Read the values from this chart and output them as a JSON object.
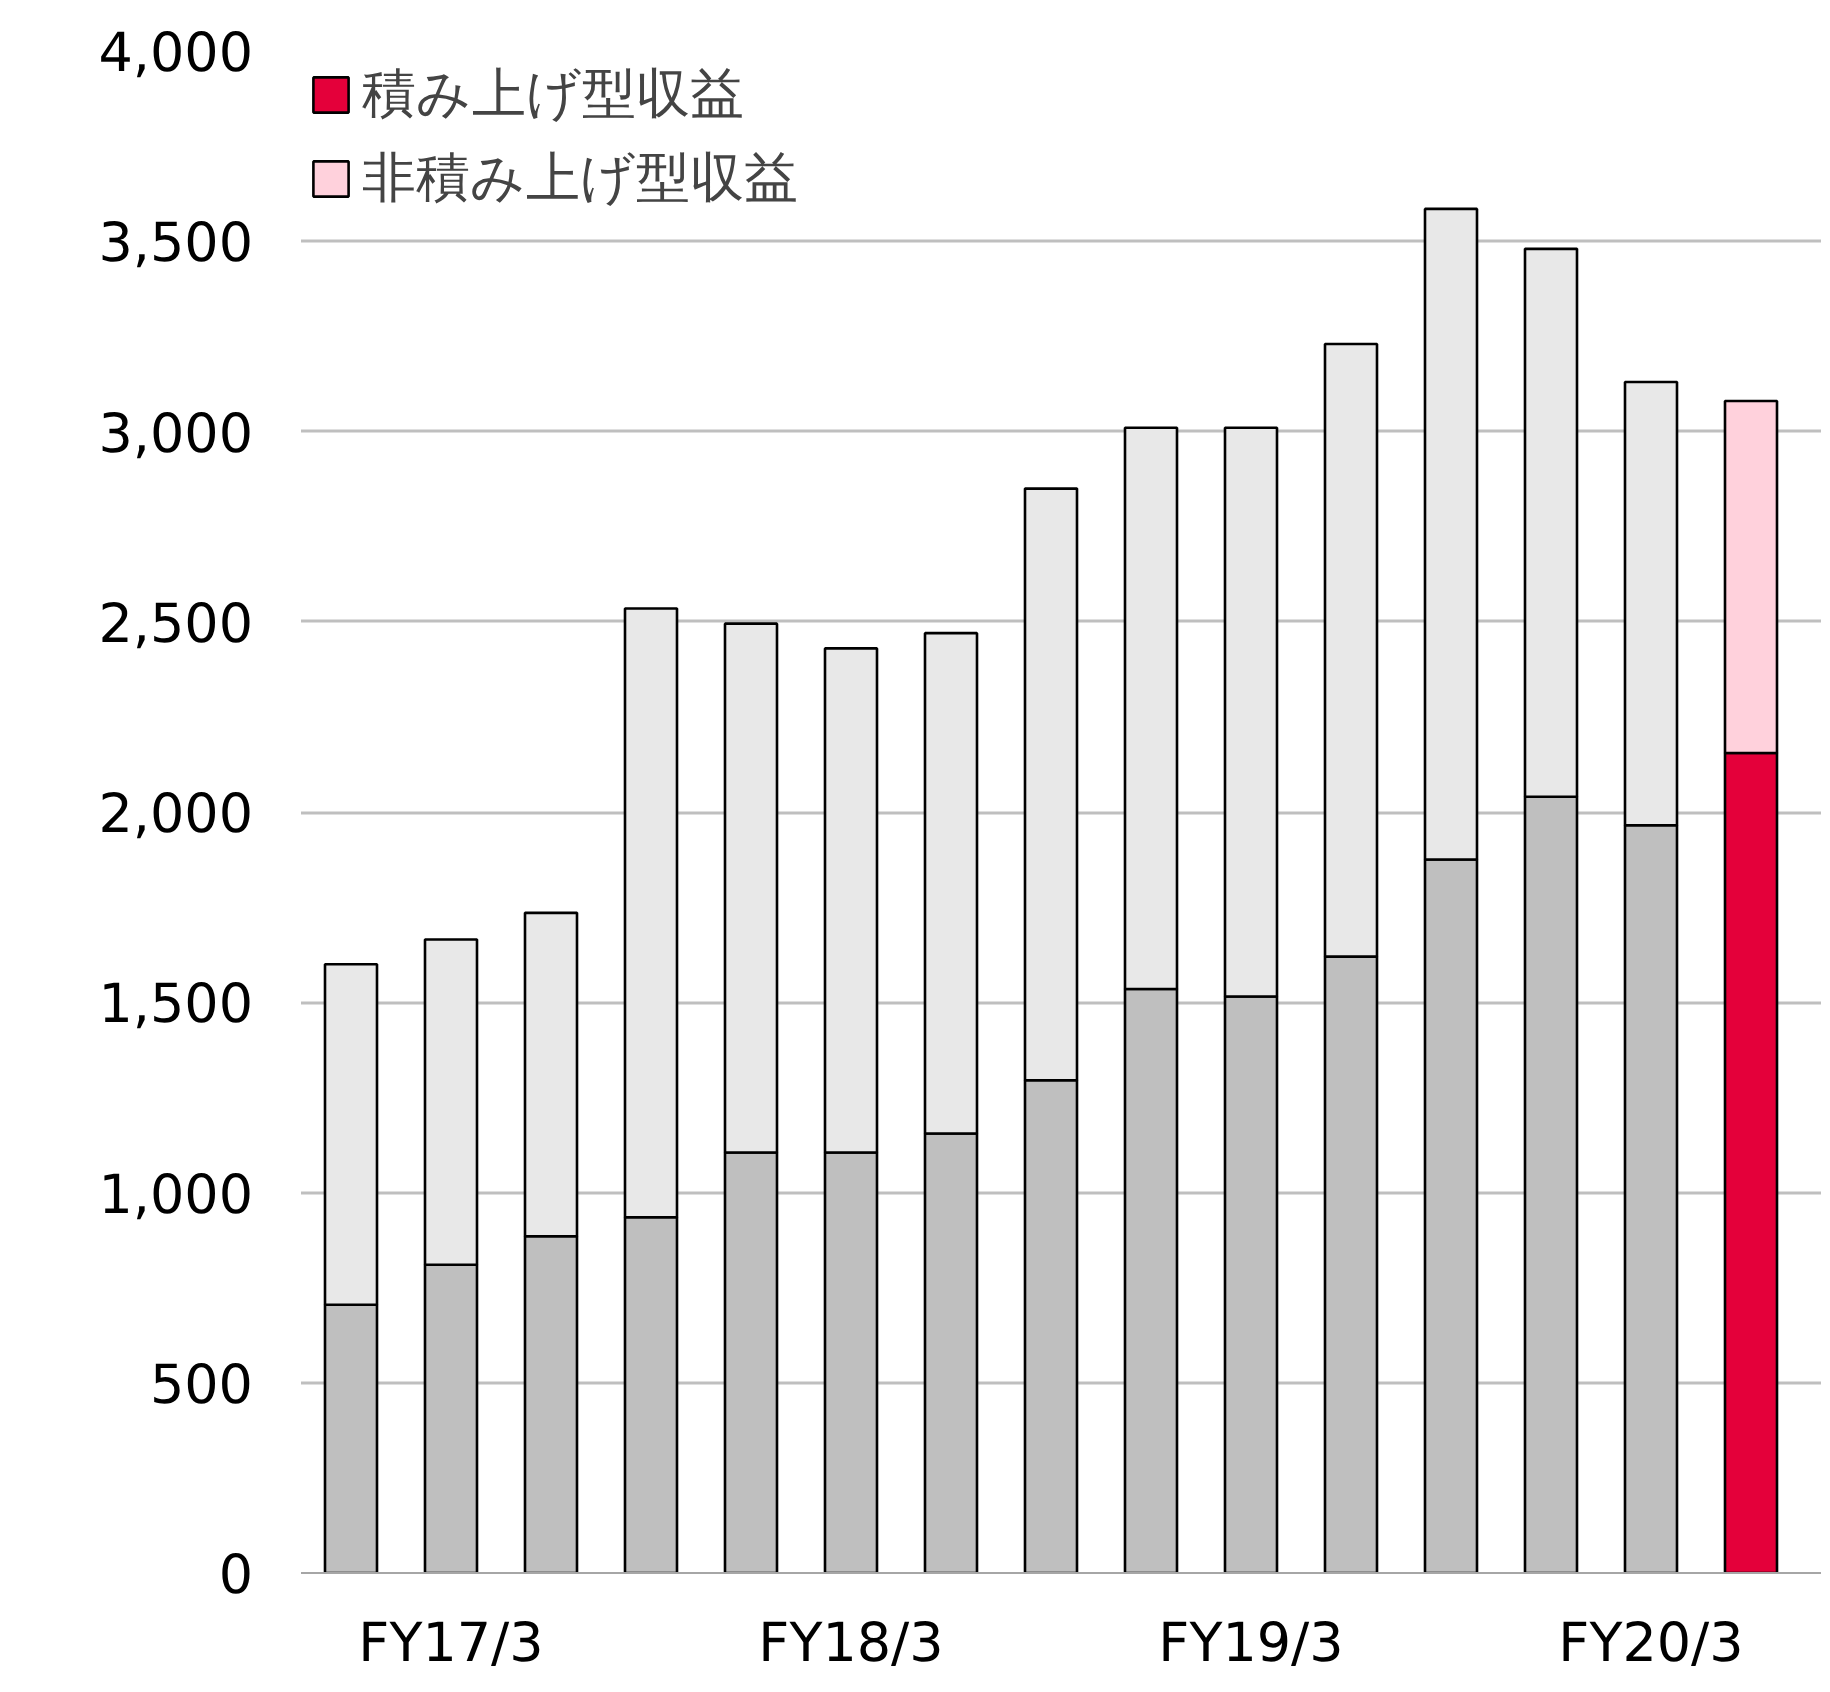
{
  "chart_data": {
    "type": "bar",
    "stacked": true,
    "categories": [
      null,
      "FY17/3",
      null,
      null,
      null,
      "FY18/3",
      null,
      null,
      null,
      "FY19/3",
      null,
      null,
      null,
      "FY20/3",
      null
    ],
    "series": [
      {
        "name": "積み上げ型収益",
        "color": "#e4003a",
        "colors": [
          "#bfbfbf",
          "#bfbfbf",
          "#bfbfbf",
          "#bfbfbf",
          "#bfbfbf",
          "#bfbfbf",
          "#bfbfbf",
          "#bfbfbf",
          "#bfbfbf",
          "#bfbfbf",
          "#bfbfbf",
          "#bfbfbf",
          "#bfbfbf",
          "#bfbfbf",
          "#e4003a"
        ],
        "values": [
          705,
          810,
          885,
          935,
          1105,
          1105,
          1155,
          1295,
          1535,
          1515,
          1620,
          1875,
          2040,
          1965,
          2155
        ]
      },
      {
        "name": "非積み上げ型収益",
        "color": "#ffd1dc",
        "colors": [
          "#e8e8e8",
          "#e8e8e8",
          "#e8e8e8",
          "#e8e8e8",
          "#e8e8e8",
          "#e8e8e8",
          "#e8e8e8",
          "#e8e8e8",
          "#e8e8e8",
          "#e8e8e8",
          "#e8e8e8",
          "#e8e8e8",
          "#e8e8e8",
          "#e8e8e8",
          "#ffd1dc"
        ],
        "values": [
          895,
          855,
          850,
          1600,
          1390,
          1325,
          1315,
          1555,
          1475,
          1495,
          1610,
          1710,
          1440,
          1165,
          925
        ]
      }
    ],
    "ylim": [
      0,
      4000
    ],
    "yticks": [
      {
        "value": 0,
        "label": "0"
      },
      {
        "value": 500,
        "label": "500"
      },
      {
        "value": 1000,
        "label": "1,000"
      },
      {
        "value": 1500,
        "label": "1,500"
      },
      {
        "value": 2000,
        "label": "2,000"
      },
      {
        "value": 2500,
        "label": "2,500"
      },
      {
        "value": 3000,
        "label": "3,000"
      },
      {
        "value": 3500,
        "label": "3,500"
      },
      {
        "value": 4000,
        "label": "4,000"
      }
    ],
    "grid": "y",
    "legend": "top left"
  }
}
